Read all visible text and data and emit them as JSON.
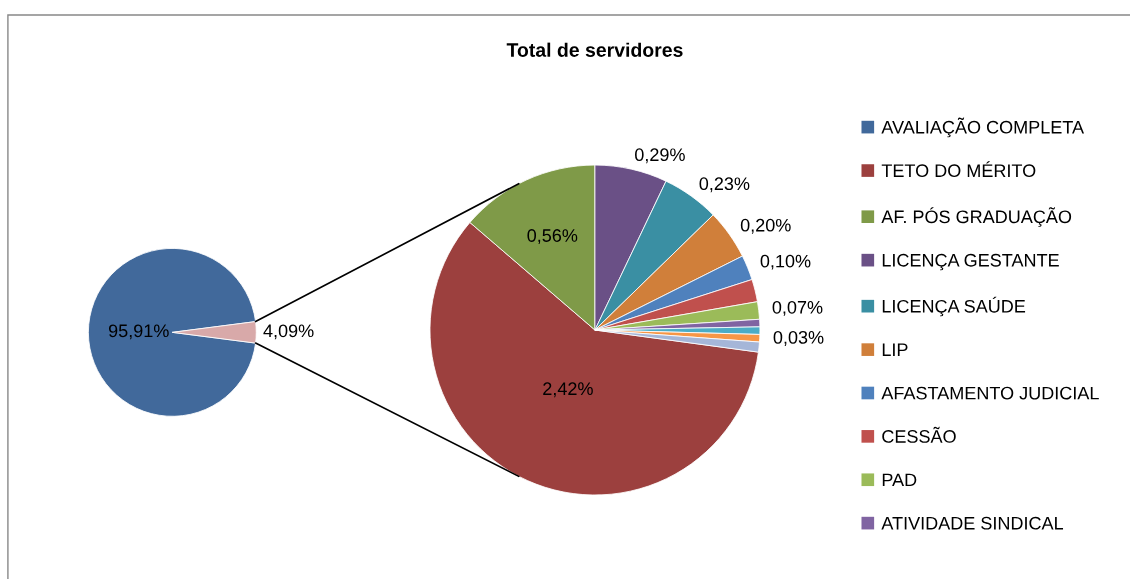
{
  "chart_data": [
    {
      "type": "pie",
      "categories": [
        "AVALIAÇÃO COMPLETA",
        null
      ],
      "values": [
        95.91,
        4.09
      ],
      "colors": [
        "#41699b",
        "#d8a9a9"
      ],
      "value_labels": [
        "95,91%",
        "4,09%"
      ]
    },
    {
      "type": "pie",
      "title": "Total de servidores",
      "categories": [
        "TETO DO MÉRITO",
        "AF. PÓS GRADUAÇÃO",
        "LICENÇA GESTANTE",
        "LICENÇA SAÚDE",
        "LIP",
        "AFASTAMENTO JUDICIAL",
        "CESSÃO",
        "PAD",
        "ATIVIDADE SINDICAL",
        null,
        null,
        null
      ],
      "values": [
        2.42,
        0.56,
        0.29,
        0.23,
        0.2,
        0.1,
        0.09,
        0.07,
        0.03,
        0.03,
        0.03,
        0.04
      ],
      "colors": [
        "#9c403e",
        "#7f9a48",
        "#6a5086",
        "#3a8fa3",
        "#d07f3a",
        "#4f81bd",
        "#c0504d",
        "#9bbb59",
        "#8064a2",
        "#4bacc6",
        "#f79646",
        "#a5b6d8"
      ],
      "value_labels": [
        "2,42%",
        "0,56%",
        "0,29%",
        "0,23%",
        "0,20%",
        "0,10%",
        null,
        "0,07%",
        null,
        null,
        "0,03%",
        null
      ],
      "legend": "right"
    }
  ]
}
